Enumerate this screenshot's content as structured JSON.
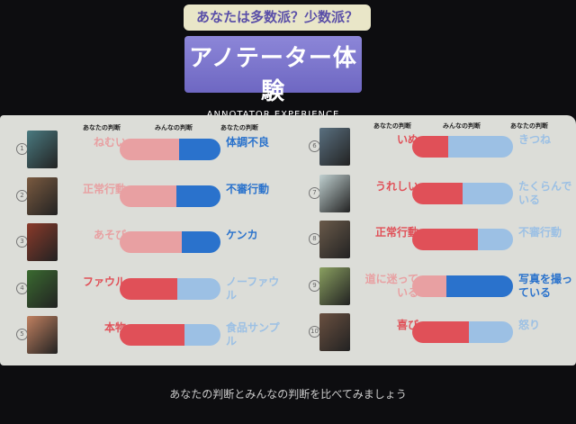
{
  "header": {
    "badge": "あなたは多数派？少数派？",
    "title": "アノテーター体験",
    "subtitle": "ANNOTATOR EXPERIENCE"
  },
  "columns": {
    "left": "あなたの判断",
    "middle": "みんなの判断",
    "right": "あなたの判断"
  },
  "colors": {
    "red": "#e05058",
    "red_light": "#e8a0a2",
    "blue": "#2a72cc",
    "blue_light": "#9cc0e4"
  },
  "items": [
    {
      "num": "1",
      "left": "ねむい",
      "right": "体調不良",
      "left_share": 0.59,
      "selected": "right",
      "image": "person-resting"
    },
    {
      "num": "2",
      "left": "正常行動",
      "right": "不審行動",
      "left_share": 0.56,
      "selected": "right",
      "image": "woman-at-table"
    },
    {
      "num": "3",
      "left": "あそび",
      "right": "ケンカ",
      "left_share": 0.62,
      "selected": "right",
      "image": "children-playing"
    },
    {
      "num": "4",
      "left": "ファウル",
      "right": "ノーファウル",
      "left_share": 0.57,
      "selected": "left",
      "image": "soccer"
    },
    {
      "num": "5",
      "left": "本物",
      "right": "食品サンプル",
      "left_share": 0.64,
      "selected": "left",
      "image": "sushi"
    },
    {
      "num": "6",
      "left": "いぬ",
      "right": "きつね",
      "left_share": 0.36,
      "selected": "left",
      "image": "dog"
    },
    {
      "num": "7",
      "left": "うれしい",
      "right": "たくらんでいる",
      "left_share": 0.5,
      "selected": "left",
      "image": "woman-smiling"
    },
    {
      "num": "8",
      "left": "正常行動",
      "right": "不審行動",
      "left_share": 0.65,
      "selected": "left",
      "image": "man-with-camera"
    },
    {
      "num": "9",
      "left": "道に迷っている",
      "right": "写真を撮っている",
      "left_share": 0.34,
      "selected": "right",
      "image": "person-in-park"
    },
    {
      "num": "10",
      "left": "喜び",
      "right": "怒り",
      "left_share": 0.56,
      "selected": "left",
      "image": "man-seated"
    }
  ],
  "footer": "あなたの判断とみんなの判断を比べてみましょう"
}
